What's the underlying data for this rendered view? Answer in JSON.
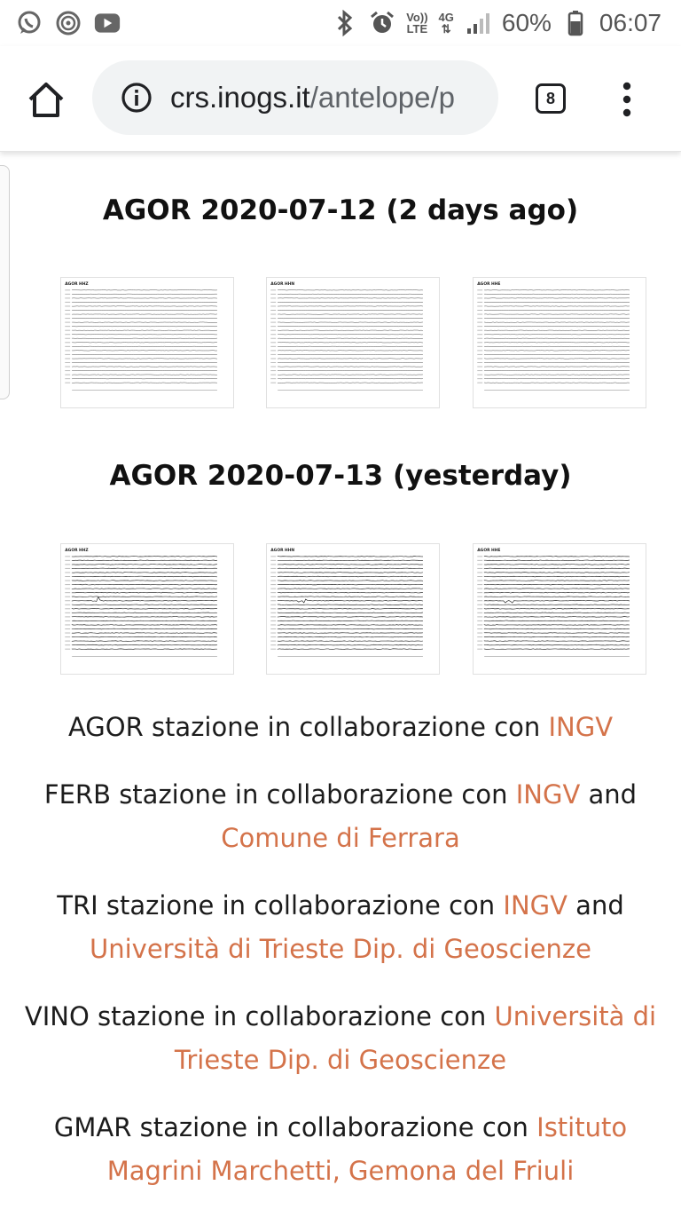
{
  "status_bar": {
    "left_icons": [
      "whatsapp-icon",
      "hotspot-icon",
      "youtube-icon"
    ],
    "right_icons": [
      "bluetooth-icon",
      "alarm-icon",
      "volte-icon",
      "4g-icon",
      "signal-icon",
      "battery-icon"
    ],
    "volte_label_top": "Vo))",
    "volte_label_bottom": "LTE",
    "network_label": "4G",
    "battery": "60%",
    "time": "06:07"
  },
  "browser": {
    "url_host": "crs.inogs.it",
    "url_rest": "/antelope/p",
    "tab_count": "8"
  },
  "sections": [
    {
      "title": "AGOR 2020-07-12 (2 days ago)",
      "plots": [
        {
          "channel": "AGOR HHZ",
          "event": false
        },
        {
          "channel": "AGOR HHN",
          "event": false
        },
        {
          "channel": "AGOR HHE",
          "event": false
        }
      ]
    },
    {
      "title": "AGOR 2020-07-13 (yesterday)",
      "plots": [
        {
          "channel": "AGOR HHZ",
          "event": true
        },
        {
          "channel": "AGOR HHN",
          "event": true
        },
        {
          "channel": "AGOR HHE",
          "event": true
        }
      ]
    }
  ],
  "credits": [
    {
      "pre": "AGOR stazione in collaborazione con ",
      "links": [
        "INGV"
      ],
      "joiner": ""
    },
    {
      "pre": "FERB stazione in collaborazione con ",
      "links": [
        "INGV",
        "Comune di Ferrara"
      ],
      "joiner": " and "
    },
    {
      "pre": "TRI stazione in collaborazione con ",
      "links": [
        "INGV",
        "Università di Trieste Dip. di Geoscienze"
      ],
      "joiner": " and "
    },
    {
      "pre": "VINO stazione in collaborazione con ",
      "links": [
        "Università di Trieste Dip. di Geoscienze"
      ],
      "joiner": ""
    },
    {
      "pre": "GMAR stazione in collaborazione con ",
      "links": [
        "Istituto Magrini Marchetti, Gemona del Friuli"
      ],
      "joiner": ""
    }
  ],
  "colors": {
    "link": "#d4734a",
    "text": "#1c1c1c",
    "title": "#111111"
  }
}
